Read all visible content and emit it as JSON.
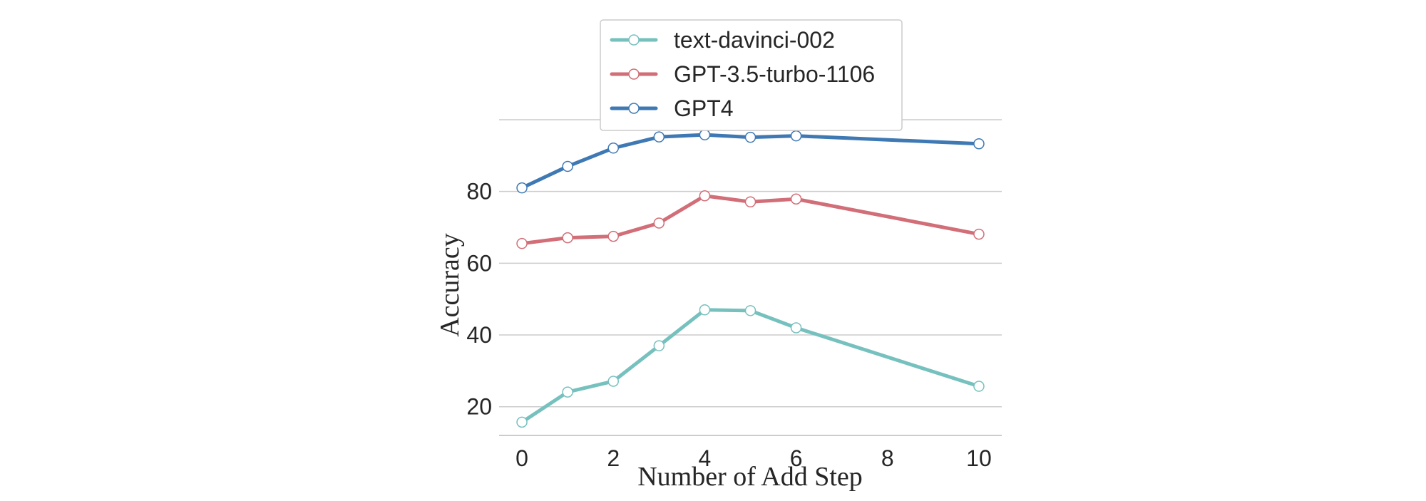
{
  "chart_data": {
    "type": "line",
    "title": "",
    "xlabel": "Number of Add Step",
    "ylabel": "Accuracy",
    "xlim": [
      -0.5,
      10.5
    ],
    "ylim": [
      12,
      100
    ],
    "xticks": [
      0,
      2,
      4,
      6,
      8,
      10
    ],
    "yticks": [
      20,
      40,
      60,
      80
    ],
    "grid": "horizontal",
    "legend_position": "top-center",
    "series": [
      {
        "name": "text-davinci-002",
        "color": "#76c1be",
        "x": [
          0,
          1,
          2,
          3,
          4,
          5,
          6,
          10
        ],
        "values": [
          15.7,
          24.1,
          27.1,
          37.0,
          47.0,
          46.8,
          42.0,
          25.7
        ]
      },
      {
        "name": "GPT-3.5-turbo-1106",
        "color": "#d16e77",
        "x": [
          0,
          1,
          2,
          3,
          4,
          5,
          6,
          10
        ],
        "values": [
          65.5,
          67.1,
          67.5,
          71.2,
          78.8,
          77.1,
          77.9,
          68.1
        ]
      },
      {
        "name": "GPT4",
        "color": "#3f79b4",
        "x": [
          0,
          1,
          2,
          3,
          4,
          5,
          6,
          10
        ],
        "values": [
          81.0,
          87.0,
          92.1,
          95.2,
          95.8,
          95.1,
          95.5,
          93.3
        ]
      }
    ]
  }
}
